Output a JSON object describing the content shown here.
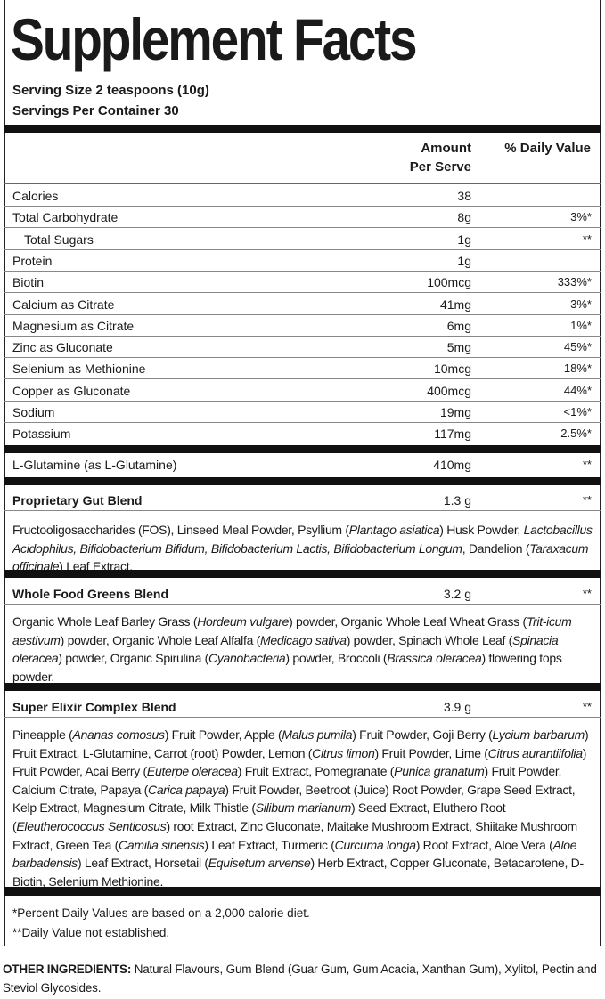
{
  "title": "Supplement Facts",
  "serving_size": "Serving Size 2 teaspoons (10g)",
  "servings_per_container": "Servings Per Container 30",
  "headers": {
    "amount_line1": "Amount",
    "amount_line2": "Per Serve",
    "dv": "% Daily Value"
  },
  "nutrients": [
    {
      "name": "Calories",
      "amount": "38",
      "dv": ""
    },
    {
      "name": "Total Carbohydrate",
      "amount": "8g",
      "dv": "3%*"
    },
    {
      "name": "Total Sugars",
      "amount": "1g",
      "dv": "**",
      "indent": true
    },
    {
      "name": "Protein",
      "amount": "1g",
      "dv": ""
    },
    {
      "name": "Biotin",
      "amount": "100mcg",
      "dv": "333%*"
    },
    {
      "name": "Calcium as Citrate",
      "amount": "41mg",
      "dv": "3%*"
    },
    {
      "name": "Magnesium as Citrate",
      "amount": "6mg",
      "dv": "1%*"
    },
    {
      "name": "Zinc as Gluconate",
      "amount": "5mg",
      "dv": "45%*"
    },
    {
      "name": "Selenium as Methionine",
      "amount": "10mcg",
      "dv": "18%*"
    },
    {
      "name": "Copper as Gluconate",
      "amount": "400mcg",
      "dv": "44%*"
    },
    {
      "name": "Sodium",
      "amount": "19mg",
      "dv": "<1%*"
    },
    {
      "name": "Potassium",
      "amount": "117mg",
      "dv": "2.5%*"
    }
  ],
  "glutamine": {
    "name": "L-Glutamine (as L-Glutamine)",
    "amount": "410mg",
    "dv": "**"
  },
  "blends": [
    {
      "name": "Proprietary Gut Blend",
      "amount": "1.3 g",
      "dv": "**",
      "desc": [
        {
          "t": "Fructooligosaccharides (FOS), Linseed Meal Powder, Psyllium ("
        },
        {
          "t": "Plantago asiatica",
          "i": true
        },
        {
          "t": ") Husk Powder, "
        },
        {
          "t": "Lactobacillus Acidophilus, Bifidobacterium Bifidum, Bifidobacterium Lactis, Bifidobacterium Longum",
          "i": true
        },
        {
          "t": ", Dandelion ("
        },
        {
          "t": "Taraxacum officinale",
          "i": true
        },
        {
          "t": ") Leaf Extract."
        }
      ]
    },
    {
      "name": "Whole Food Greens Blend",
      "amount": "3.2 g",
      "dv": "**",
      "desc": [
        {
          "t": "Organic Whole Leaf Barley Grass ("
        },
        {
          "t": "Hordeum vulgare",
          "i": true
        },
        {
          "t": ") powder, Organic Whole Leaf Wheat Grass ("
        },
        {
          "t": "Trit-icum aestivum",
          "i": true
        },
        {
          "t": ") powder, Organic Whole Leaf Alfalfa ("
        },
        {
          "t": "Medicago sativa",
          "i": true
        },
        {
          "t": ") powder, Spinach Whole Leaf ("
        },
        {
          "t": "Spinacia oleracea",
          "i": true
        },
        {
          "t": ") powder, Organic Spirulina ("
        },
        {
          "t": "Cyanobacteria",
          "i": true
        },
        {
          "t": ") powder, Broccoli ("
        },
        {
          "t": "Brassica oleracea",
          "i": true
        },
        {
          "t": ") flowering tops powder."
        }
      ]
    },
    {
      "name": "Super Elixir Complex Blend",
      "amount": "3.9 g",
      "dv": "**",
      "desc": [
        {
          "t": "Pineapple ("
        },
        {
          "t": "Ananas comosus",
          "i": true
        },
        {
          "t": ") Fruit Powder, Apple ("
        },
        {
          "t": "Malus pumila",
          "i": true
        },
        {
          "t": ") Fruit Powder, Goji Berry ("
        },
        {
          "t": "Lycium barbarum",
          "i": true
        },
        {
          "t": ") Fruit Extract, L-Glutamine, Carrot (root) Powder, Lemon ("
        },
        {
          "t": "Citrus limon",
          "i": true
        },
        {
          "t": ") Fruit Powder, Lime ("
        },
        {
          "t": "Citrus aurantiifolia",
          "i": true
        },
        {
          "t": ") Fruit Powder, Acai Berry ("
        },
        {
          "t": "Euterpe oleracea",
          "i": true
        },
        {
          "t": ") Fruit Extract, Pomegranate ("
        },
        {
          "t": "Punica granatum",
          "i": true
        },
        {
          "t": ") Fruit Powder, Calcium Citrate, Papaya ("
        },
        {
          "t": "Carica papaya",
          "i": true
        },
        {
          "t": ") Fruit Powder, Beetroot (Juice) Root Powder, Grape Seed Extract, Kelp Extract, Magnesium Citrate, Milk Thistle ("
        },
        {
          "t": "Silibum marianum",
          "i": true
        },
        {
          "t": ") Seed Extract, Eluthero Root ("
        },
        {
          "t": "Eleutherococcus Senticosus",
          "i": true
        },
        {
          "t": ") root Extract, Zinc Gluconate,  Maitake Mushroom Extract, Shiitake Mushroom Extract, Green Tea ("
        },
        {
          "t": "Camilia sinensis",
          "i": true
        },
        {
          "t": ") Leaf Extract, Turmeric ("
        },
        {
          "t": "Curcuma longa",
          "i": true
        },
        {
          "t": ") Root Extract, Aloe Vera ("
        },
        {
          "t": "Aloe barbadensis",
          "i": true
        },
        {
          "t": ") Leaf Extract, Horsetail ("
        },
        {
          "t": "Equisetum arvense",
          "i": true
        },
        {
          "t": ") Herb Extract, Copper Gluconate, Betacarotene, D-Biotin, Selenium Methionine."
        }
      ]
    }
  ],
  "footnotes": [
    "*Percent Daily Values are based on a 2,000 calorie diet.",
    "**Daily Value not established."
  ],
  "other_ingredients": {
    "label": "OTHER INGREDIENTS:",
    "text": " Natural Flavours, Gum Blend (Guar Gum, Gum Acacia, Xanthan Gum), Xylitol, Pectin and Steviol Glycosides."
  }
}
